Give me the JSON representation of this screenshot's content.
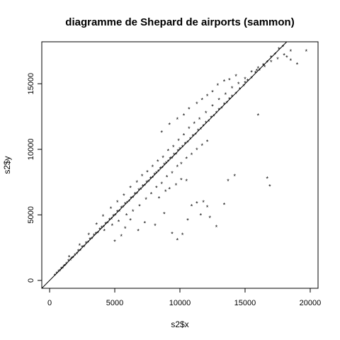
{
  "chart_data": {
    "type": "scatter",
    "title": "diagramme de Shepard de airports (sammon)",
    "xlabel": "s2$x",
    "ylabel": "s2$y",
    "xlim": [
      -600,
      20600
    ],
    "ylim": [
      -600,
      18200
    ],
    "xticks": [
      0,
      5000,
      10000,
      15000,
      20000
    ],
    "yticks": [
      0,
      5000,
      10000,
      15000
    ],
    "marker": "*",
    "reference_line": {
      "intercept": 0,
      "slope": 1
    },
    "grid": false,
    "x": [
      400,
      550,
      700,
      800,
      900,
      1000,
      1100,
      1200,
      1300,
      1450,
      1600,
      1700,
      1800,
      1950,
      2100,
      2200,
      2350,
      2500,
      2650,
      2800,
      2950,
      3100,
      3250,
      3400,
      3550,
      3700,
      3850,
      4000,
      4150,
      4300,
      4450,
      4600,
      4750,
      4900,
      5050,
      5200,
      5350,
      5500,
      5650,
      5800,
      5950,
      6100,
      6250,
      6400,
      6550,
      6700,
      6850,
      7000,
      7150,
      7300,
      7450,
      7600,
      7750,
      7900,
      8050,
      8200,
      8350,
      8500,
      8650,
      8800,
      8950,
      9100,
      9250,
      9400,
      9550,
      9700,
      9850,
      10000,
      10200,
      10400,
      10600,
      10800,
      11000,
      11200,
      11400,
      11600,
      11800,
      12000,
      12200,
      12400,
      12600,
      12800,
      13000,
      13200,
      13400,
      13600,
      13800,
      14000,
      14300,
      14600,
      14900,
      15200,
      15500,
      15800,
      16100,
      16400,
      16700,
      17000,
      17300,
      17600,
      17900,
      18200,
      18500,
      19000,
      19700,
      1500,
      2300,
      3000,
      3600,
      4100,
      4700,
      5200,
      5700,
      6200,
      6700,
      7100,
      7500,
      7900,
      8300,
      8700,
      9100,
      9500,
      9900,
      10300,
      10700,
      11100,
      11500,
      12000,
      12500,
      13000,
      13500,
      14000,
      14500,
      15000,
      15500,
      16000,
      16500,
      17000,
      17500,
      18000,
      18500,
      4200,
      4800,
      5300,
      5900,
      6400,
      6900,
      7400,
      7800,
      8200,
      8600,
      9000,
      9400,
      9800,
      10100,
      10500,
      10900,
      11300,
      11700,
      12100,
      8600,
      9200,
      9800,
      10300,
      10700,
      11300,
      11700,
      12100,
      12500,
      12900,
      13400,
      13800,
      14300,
      15000,
      15900,
      8400,
      8900,
      9200,
      9700,
      10100,
      10500,
      11800,
      12100,
      13400,
      13700,
      14200,
      16000,
      16700,
      16900,
      5000,
      5500,
      5800,
      6200,
      6800,
      7300,
      8100,
      8800,
      9400,
      9800,
      10200,
      10600,
      10900,
      11300,
      11600,
      12300,
      12800
    ],
    "y": [
      400,
      550,
      700,
      750,
      900,
      950,
      1100,
      1150,
      1300,
      1500,
      1550,
      1700,
      1750,
      1950,
      2050,
      2250,
      2300,
      2550,
      2600,
      2850,
      2900,
      3150,
      3200,
      3450,
      3600,
      3650,
      3900,
      4050,
      4100,
      4350,
      4400,
      4650,
      4700,
      4950,
      5000,
      5250,
      5300,
      5550,
      5600,
      5850,
      5950,
      6050,
      6300,
      6350,
      6600,
      6650,
      6900,
      6950,
      7200,
      7250,
      7500,
      7550,
      7800,
      7850,
      8100,
      8200,
      8350,
      8550,
      8600,
      8850,
      8950,
      9100,
      9300,
      9350,
      9600,
      9650,
      9900,
      10050,
      10200,
      10450,
      10550,
      10800,
      11050,
      11150,
      11450,
      11550,
      11800,
      12050,
      12150,
      12450,
      12550,
      12800,
      13050,
      13150,
      13450,
      13550,
      13850,
      14050,
      14250,
      14600,
      14850,
      15250,
      15450,
      15850,
      16050,
      16450,
      16650,
      17050,
      17250,
      17650,
      17850,
      17050,
      16800,
      16500,
      17500,
      1800,
      2700,
      3500,
      4300,
      4900,
      5500,
      6000,
      6500,
      7100,
      7500,
      8000,
      8300,
      8700,
      9100,
      9400,
      9900,
      10200,
      10700,
      11100,
      11600,
      12000,
      12300,
      12800,
      13300,
      13800,
      14200,
      14700,
      15000,
      15400,
      15900,
      16200,
      16300,
      16700,
      16900,
      17200,
      17500,
      3800,
      4200,
      4500,
      5000,
      5300,
      5700,
      6200,
      6600,
      7100,
      7400,
      7900,
      8200,
      8700,
      8900,
      9300,
      9600,
      10000,
      10300,
      10600,
      11300,
      11900,
      12300,
      12600,
      13100,
      13500,
      13800,
      14100,
      14400,
      14900,
      15200,
      15300,
      15600,
      15100,
      16000,
      6300,
      6800,
      7000,
      7300,
      7700,
      7600,
      6000,
      5600,
      5800,
      7600,
      8000,
      12600,
      7800,
      7200,
      3000,
      3400,
      4000,
      4600,
      3800,
      4400,
      4200,
      5100,
      3600,
      3100,
      3500,
      4600,
      5700,
      5900,
      5000,
      4800,
      4100
    ]
  }
}
